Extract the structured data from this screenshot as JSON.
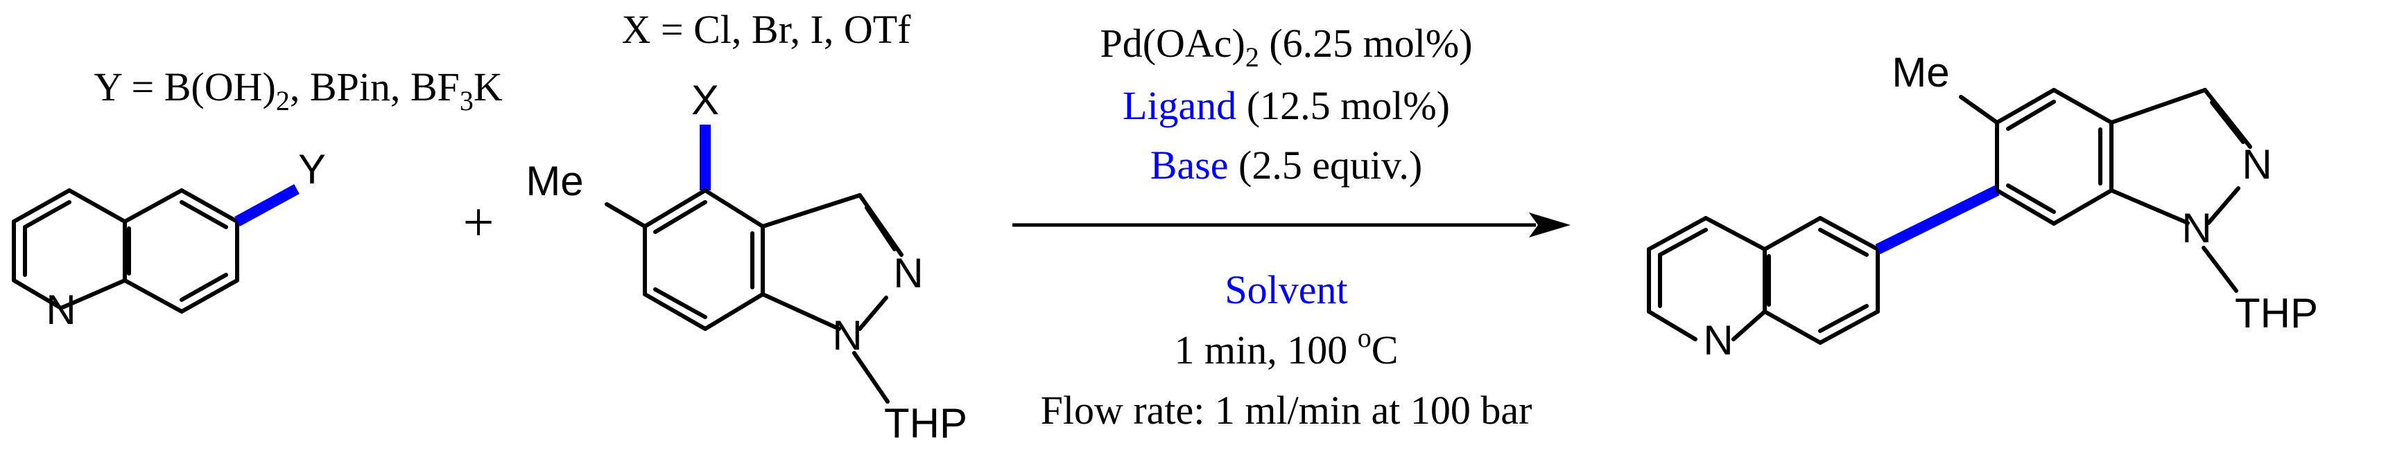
{
  "reactant_1": {
    "substituent_note": {
      "prefix": "Y = B(OH)",
      "sub1": "2",
      "middle": ", BPin, BF",
      "sub2": "3",
      "suffix": "K"
    },
    "label_Y": "Y",
    "label_N": "N"
  },
  "plus_sign": "+",
  "reactant_2": {
    "substituent_note": "X = Cl, Br, I, OTf",
    "label_X": "X",
    "label_Me": "Me",
    "label_N2": "N",
    "label_N1": "N",
    "label_THP": "THP"
  },
  "conditions": {
    "catalyst": {
      "prefix": "Pd(OAc)",
      "sub": "2",
      "suffix": " (6.25 mol%)"
    },
    "ligand": {
      "name": "Ligand",
      "amount": " (12.5 mol%)"
    },
    "base": {
      "name": "Base",
      "amount": " (2.5 equiv.)"
    },
    "solvent": "Solvent",
    "time_temp": {
      "prefix": "1 min, 100 ",
      "sup": "o",
      "suffix": "C"
    },
    "flow_rate": "Flow rate: 1 ml/min at 100 bar"
  },
  "product": {
    "label_Me": "Me",
    "label_N2": "N",
    "label_N1": "N",
    "label_THP": "THP",
    "label_N_quinoline": "N"
  },
  "colors": {
    "highlight": "#0000ff",
    "text": "#000000"
  }
}
